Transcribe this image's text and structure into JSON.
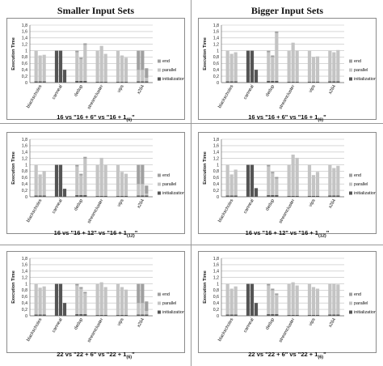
{
  "headers": {
    "left": "Smaller Input Sets",
    "right": "Bigger Input Sets"
  },
  "captions": [
    {
      "main": "16 vs \"16 + 6\" vs \"16 + 1",
      "sub": "(6)",
      "tail": "\""
    },
    {
      "main": "16 vs \"16 + 6\" vs \"16 + 1",
      "sub": "(6)",
      "tail": "\""
    },
    {
      "main": "16 vs \"16 + 12\" vs \"16 + 1",
      "sub": "(12)",
      "tail": "\""
    },
    {
      "main": "16 vs \"16 + 12\" vs \"16 + 1",
      "sub": "(12)",
      "tail": "\""
    },
    {
      "main": "22 vs \"22 + 6\" vs \"22 + 1",
      "sub": "(6)",
      "tail": "\""
    },
    {
      "main": "22 vs \"22 + 6\" vs \"22 + 1",
      "sub": "(6)",
      "tail": "\""
    }
  ],
  "colors": {
    "end": "#a0a0a0",
    "parallel": "#c4c4c4",
    "initialization": "#555555",
    "grid": "#bfbfbf",
    "axis": "#666666"
  },
  "chart_data": [
    {
      "type": "bar",
      "stacked": true,
      "position": "row 1, left",
      "ylabel": "Execution Time",
      "ylim": [
        0,
        1.8
      ],
      "yticks": [
        "0",
        "0,2",
        "0,4",
        "0,6",
        "0,8",
        "1",
        "1,2",
        "1,4",
        "1,6",
        "1,8"
      ],
      "categories": [
        "blackscholes",
        "canneal",
        "dedup",
        "streamcluster",
        "vips",
        "x264"
      ],
      "legend": [
        "end",
        "parallel",
        "initialization"
      ],
      "legend_position": "right",
      "bars_per_category": 3,
      "totals": [
        [
          1.0,
          0.85,
          0.87
        ],
        [
          1.0,
          1.0,
          0.4
        ],
        [
          1.0,
          0.78,
          1.23
        ],
        [
          1.0,
          1.15,
          0.9
        ],
        [
          1.0,
          0.85,
          0.78
        ],
        [
          1.0,
          1.0,
          0.45
        ]
      ],
      "initialization": [
        [
          0.04,
          0.04,
          0.04
        ],
        [
          1.0,
          1.0,
          0.4
        ],
        [
          0.05,
          0.05,
          0.05
        ],
        [
          0.03,
          0.03,
          0.03
        ],
        [
          0.03,
          0.03,
          0.03
        ],
        [
          0.04,
          0.04,
          0.04
        ]
      ],
      "end": [
        [
          0.0,
          0.0,
          0.0
        ],
        [
          0.0,
          0.0,
          0.0
        ],
        [
          0.05,
          0.05,
          0.05
        ],
        [
          0.0,
          0.0,
          0.0
        ],
        [
          0.0,
          0.0,
          0.0
        ],
        [
          0.6,
          0.6,
          0.3
        ]
      ]
    },
    {
      "type": "bar",
      "stacked": true,
      "position": "row 1, right",
      "ylabel": "Execution Time",
      "ylim": [
        0,
        1.8
      ],
      "yticks": [
        "0",
        "0,2",
        "0,4",
        "0,6",
        "0,8",
        "1",
        "1,2",
        "1,4",
        "1,6",
        "1,8"
      ],
      "categories": [
        "blackscholes",
        "canneal",
        "dedup",
        "streamcluster",
        "vips",
        "x264"
      ],
      "legend": [
        "end",
        "parallel",
        "initialization"
      ],
      "legend_position": "right",
      "bars_per_category": 3,
      "totals": [
        [
          1.0,
          0.9,
          0.95
        ],
        [
          1.0,
          1.0,
          0.4
        ],
        [
          1.0,
          0.85,
          1.6
        ],
        [
          1.0,
          1.25,
          1.0
        ],
        [
          1.0,
          0.8,
          0.82
        ],
        [
          1.0,
          0.95,
          1.02
        ]
      ],
      "initialization": [
        [
          0.04,
          0.04,
          0.04
        ],
        [
          1.0,
          1.0,
          0.4
        ],
        [
          0.05,
          0.05,
          0.05
        ],
        [
          0.03,
          0.03,
          0.03
        ],
        [
          0.03,
          0.03,
          0.03
        ],
        [
          0.04,
          0.04,
          0.04
        ]
      ],
      "end": [
        [
          0.0,
          0.0,
          0.0
        ],
        [
          0.0,
          0.0,
          0.0
        ],
        [
          0.05,
          0.05,
          0.05
        ],
        [
          0.0,
          0.0,
          0.0
        ],
        [
          0.0,
          0.0,
          0.0
        ],
        [
          0.0,
          0.0,
          0.0
        ]
      ]
    },
    {
      "type": "bar",
      "stacked": true,
      "position": "row 2, left",
      "ylabel": "Execution Time",
      "ylim": [
        0,
        1.8
      ],
      "yticks": [
        "0",
        "0,2",
        "0,4",
        "0,6",
        "0,8",
        "1",
        "1,2",
        "1,4",
        "1,6",
        "1,8"
      ],
      "categories": [
        "blackscholes",
        "canneal",
        "dedup",
        "streamcluster",
        "vips",
        "x264"
      ],
      "legend": [
        "end",
        "parallel",
        "initialization"
      ],
      "legend_position": "right",
      "bars_per_category": 3,
      "totals": [
        [
          1.0,
          0.7,
          0.8
        ],
        [
          1.0,
          1.0,
          0.25
        ],
        [
          1.0,
          0.72,
          1.25
        ],
        [
          1.0,
          1.22,
          1.0
        ],
        [
          1.0,
          0.78,
          0.72
        ],
        [
          1.0,
          1.0,
          0.35
        ]
      ],
      "initialization": [
        [
          0.04,
          0.04,
          0.04
        ],
        [
          1.0,
          1.0,
          0.25
        ],
        [
          0.05,
          0.05,
          0.05
        ],
        [
          0.03,
          0.03,
          0.03
        ],
        [
          0.03,
          0.03,
          0.03
        ],
        [
          0.04,
          0.04,
          0.04
        ]
      ],
      "end": [
        [
          0.0,
          0.0,
          0.0
        ],
        [
          0.0,
          0.0,
          0.0
        ],
        [
          0.05,
          0.05,
          0.05
        ],
        [
          0.0,
          0.0,
          0.0
        ],
        [
          0.0,
          0.0,
          0.0
        ],
        [
          0.6,
          0.6,
          0.25
        ]
      ]
    },
    {
      "type": "bar",
      "stacked": true,
      "position": "row 2, right",
      "ylabel": "Execution Time",
      "ylim": [
        0,
        1.8
      ],
      "yticks": [
        "0",
        "0,2",
        "0,4",
        "0,6",
        "0,8",
        "1",
        "1,2",
        "1,4",
        "1,6",
        "1,8"
      ],
      "categories": [
        "blackscholes",
        "canneal",
        "dedup",
        "streamcluster",
        "vips",
        "x264"
      ],
      "legend": [
        "end",
        "parallel",
        "initialization"
      ],
      "legend_position": "right",
      "bars_per_category": 3,
      "totals": [
        [
          1.0,
          0.7,
          0.85
        ],
        [
          1.0,
          1.0,
          0.27
        ],
        [
          1.0,
          0.78,
          0.62
        ],
        [
          1.0,
          1.32,
          1.22
        ],
        [
          1.0,
          0.68,
          0.78
        ],
        [
          1.0,
          0.9,
          0.97
        ]
      ],
      "initialization": [
        [
          0.04,
          0.04,
          0.04
        ],
        [
          1.0,
          1.0,
          0.27
        ],
        [
          0.05,
          0.05,
          0.05
        ],
        [
          0.03,
          0.03,
          0.03
        ],
        [
          0.03,
          0.03,
          0.03
        ],
        [
          0.04,
          0.04,
          0.04
        ]
      ],
      "end": [
        [
          0.0,
          0.0,
          0.0
        ],
        [
          0.0,
          0.0,
          0.0
        ],
        [
          0.05,
          0.05,
          0.05
        ],
        [
          0.0,
          0.0,
          0.0
        ],
        [
          0.0,
          0.0,
          0.0
        ],
        [
          0.0,
          0.0,
          0.0
        ]
      ]
    },
    {
      "type": "bar",
      "stacked": true,
      "position": "row 3, left",
      "ylabel": "Execution Time",
      "ylim": [
        0,
        1.8
      ],
      "yticks": [
        "0",
        "0,2",
        "0,4",
        "0,6",
        "0,8",
        "1",
        "1,2",
        "1,4",
        "1,6",
        "1,8"
      ],
      "categories": [
        "blackscholes",
        "canneal",
        "dedup",
        "streamcluster",
        "vips",
        "x264"
      ],
      "legend": [
        "end",
        "parallel",
        "initialization"
      ],
      "legend_position": "right",
      "bars_per_category": 3,
      "totals": [
        [
          1.0,
          0.88,
          0.92
        ],
        [
          1.0,
          1.0,
          0.4
        ],
        [
          1.0,
          0.9,
          0.75
        ],
        [
          1.0,
          1.05,
          0.9
        ],
        [
          1.0,
          0.9,
          0.82
        ],
        [
          1.0,
          1.0,
          0.45
        ]
      ],
      "initialization": [
        [
          0.04,
          0.04,
          0.04
        ],
        [
          1.0,
          1.0,
          0.4
        ],
        [
          0.05,
          0.05,
          0.05
        ],
        [
          0.03,
          0.03,
          0.03
        ],
        [
          0.03,
          0.03,
          0.03
        ],
        [
          0.04,
          0.04,
          0.04
        ]
      ],
      "end": [
        [
          0.0,
          0.0,
          0.0
        ],
        [
          0.0,
          0.0,
          0.0
        ],
        [
          0.05,
          0.05,
          0.05
        ],
        [
          0.0,
          0.0,
          0.0
        ],
        [
          0.0,
          0.0,
          0.0
        ],
        [
          0.6,
          0.6,
          0.3
        ]
      ]
    },
    {
      "type": "bar",
      "stacked": true,
      "position": "row 3, right",
      "ylabel": "Execution Time",
      "ylim": [
        0,
        1.8
      ],
      "yticks": [
        "0",
        "0,2",
        "0,4",
        "0,6",
        "0,8",
        "1",
        "1,2",
        "1,4",
        "1,6",
        "1,8"
      ],
      "categories": [
        "blackscholes",
        "canneal",
        "dedup",
        "streamcluster",
        "vips",
        "x264"
      ],
      "legend": [
        "end",
        "parallel",
        "initialization"
      ],
      "legend_position": "right",
      "bars_per_category": 3,
      "totals": [
        [
          1.0,
          0.85,
          0.92
        ],
        [
          1.0,
          1.0,
          0.4
        ],
        [
          1.0,
          0.85,
          0.7
        ],
        [
          1.0,
          1.05,
          0.95
        ],
        [
          1.0,
          0.9,
          0.85
        ],
        [
          1.0,
          1.0,
          0.98
        ]
      ],
      "initialization": [
        [
          0.04,
          0.04,
          0.04
        ],
        [
          1.0,
          1.0,
          0.4
        ],
        [
          0.05,
          0.05,
          0.05
        ],
        [
          0.03,
          0.03,
          0.03
        ],
        [
          0.03,
          0.03,
          0.03
        ],
        [
          0.04,
          0.04,
          0.04
        ]
      ],
      "end": [
        [
          0.0,
          0.0,
          0.0
        ],
        [
          0.0,
          0.0,
          0.0
        ],
        [
          0.05,
          0.05,
          0.05
        ],
        [
          0.0,
          0.0,
          0.0
        ],
        [
          0.0,
          0.0,
          0.0
        ],
        [
          0.0,
          0.0,
          0.0
        ]
      ]
    }
  ]
}
